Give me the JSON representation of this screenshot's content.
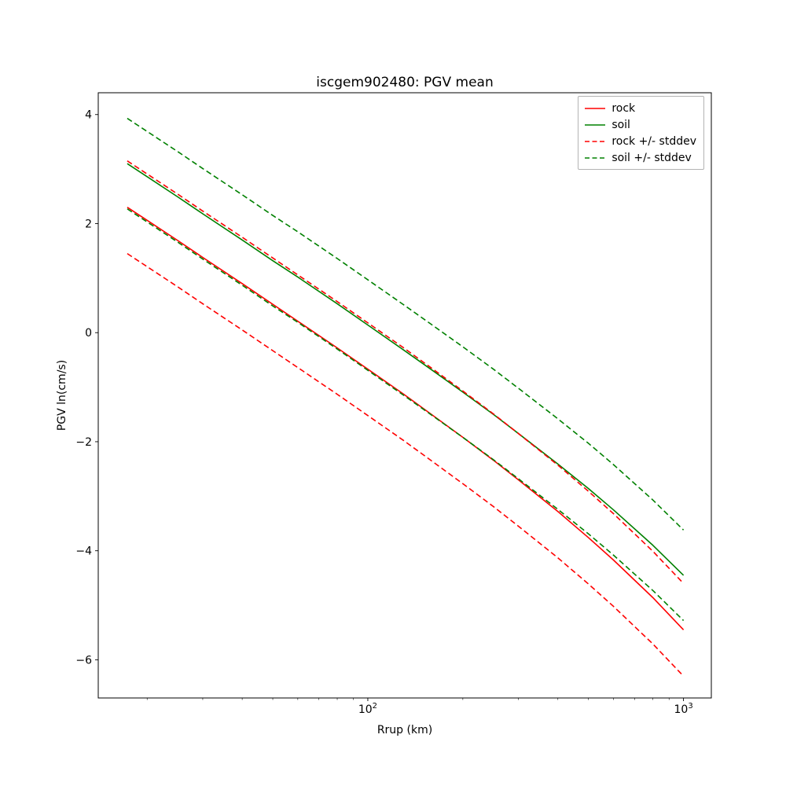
{
  "chart_data": {
    "type": "line",
    "title": "iscgem902480: PGV mean",
    "xlabel": "Rrup (km)",
    "ylabel": "PGV ln(cm/s)",
    "xscale": "log",
    "xlim": [
      14,
      1225
    ],
    "ylim": [
      -6.7,
      4.4
    ],
    "grid": false,
    "legend_position": "upper right",
    "yticks": [
      {
        "v": -6,
        "label": "−6"
      },
      {
        "v": -4,
        "label": "−4"
      },
      {
        "v": -2,
        "label": "−2"
      },
      {
        "v": 0,
        "label": "0"
      },
      {
        "v": 2,
        "label": "2"
      },
      {
        "v": 4,
        "label": "4"
      }
    ],
    "xticks_major": [
      {
        "v": 100,
        "base": "10",
        "exp": "2"
      },
      {
        "v": 1000,
        "base": "10",
        "exp": "3"
      }
    ],
    "xticks_minor": [
      20,
      30,
      40,
      50,
      60,
      70,
      80,
      90,
      200,
      300,
      400,
      500,
      600,
      700,
      800,
      900
    ],
    "x": [
      17.3,
      20,
      25,
      30,
      40,
      50,
      60,
      80,
      100,
      130,
      160,
      200,
      250,
      300,
      400,
      500,
      600,
      800,
      1000
    ],
    "lines": [
      {
        "label": "rock",
        "color": "#ff0000",
        "dash": "solid",
        "in_legend": true,
        "y": [
          2.3,
          2.06,
          1.69,
          1.38,
          0.9,
          0.52,
          0.21,
          -0.28,
          -0.67,
          -1.13,
          -1.51,
          -1.92,
          -2.34,
          -2.7,
          -3.28,
          -3.76,
          -4.17,
          -4.86,
          -5.45
        ]
      },
      {
        "label": "soil",
        "color": "#008000",
        "dash": "solid",
        "in_legend": true,
        "y": [
          3.1,
          2.86,
          2.49,
          2.18,
          1.7,
          1.32,
          1.02,
          0.53,
          0.14,
          -0.32,
          -0.69,
          -1.09,
          -1.5,
          -1.85,
          -2.41,
          -2.86,
          -3.25,
          -3.9,
          -4.45
        ]
      },
      {
        "label": "rock +/- stddev",
        "color": "#ff0000",
        "dash": "dashed",
        "in_legend": true,
        "y": [
          3.15,
          2.91,
          2.54,
          2.23,
          1.75,
          1.37,
          1.06,
          0.57,
          0.18,
          -0.28,
          -0.66,
          -1.07,
          -1.49,
          -1.85,
          -2.43,
          -2.91,
          -3.32,
          -4.01,
          -4.6
        ]
      },
      {
        "label": "rock - stddev",
        "color": "#ff0000",
        "dash": "dashed",
        "in_legend": false,
        "y": [
          1.45,
          1.21,
          0.84,
          0.53,
          0.05,
          -0.33,
          -0.64,
          -1.13,
          -1.52,
          -1.98,
          -2.36,
          -2.77,
          -3.19,
          -3.55,
          -4.13,
          -4.61,
          -5.02,
          -5.71,
          -6.3
        ]
      },
      {
        "label": "soil +/- stddev",
        "color": "#008000",
        "dash": "dashed",
        "in_legend": true,
        "y": [
          3.93,
          3.69,
          3.32,
          3.01,
          2.53,
          2.15,
          1.85,
          1.36,
          0.97,
          0.51,
          0.14,
          -0.26,
          -0.67,
          -1.02,
          -1.58,
          -2.03,
          -2.42,
          -3.07,
          -3.62
        ]
      },
      {
        "label": "soil - stddev",
        "color": "#008000",
        "dash": "dashed",
        "in_legend": false,
        "y": [
          2.27,
          2.03,
          1.66,
          1.35,
          0.87,
          0.49,
          0.19,
          -0.3,
          -0.69,
          -1.15,
          -1.52,
          -1.92,
          -2.33,
          -2.68,
          -3.24,
          -3.69,
          -4.08,
          -4.73,
          -5.28
        ]
      }
    ]
  }
}
